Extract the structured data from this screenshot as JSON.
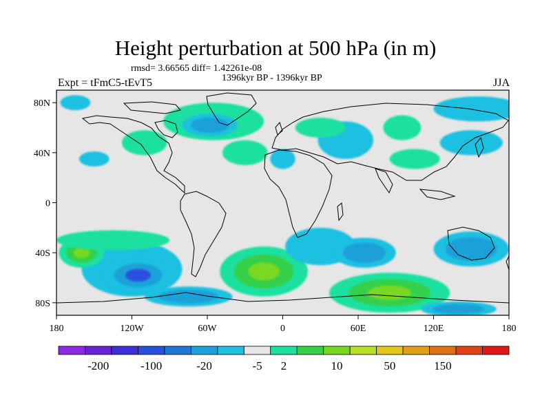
{
  "title": "Height perturbation at 500 hPa (in m)",
  "stats": "rmsd= 3.66565 diff= 1.42261e-08",
  "period": "1396kyr BP - 1396kyr BP",
  "experiment": "Expt = tFmC5-tEvT5",
  "season": "JJA",
  "map": {
    "projection": "cylindrical-equidistant",
    "lon_range": [
      -180,
      180
    ],
    "lat_range": [
      -90,
      90
    ],
    "lon_ticks": [
      {
        "value": -180,
        "label": "180"
      },
      {
        "value": -120,
        "label": "120W"
      },
      {
        "value": -60,
        "label": "60W"
      },
      {
        "value": 0,
        "label": "0"
      },
      {
        "value": 60,
        "label": "60E"
      },
      {
        "value": 120,
        "label": "120E"
      },
      {
        "value": 180,
        "label": "180"
      }
    ],
    "lat_ticks": [
      {
        "value": 80,
        "label": "80N"
      },
      {
        "value": 40,
        "label": "40N"
      },
      {
        "value": 0,
        "label": "0"
      },
      {
        "value": -40,
        "label": "40S"
      },
      {
        "value": -80,
        "label": "80S"
      }
    ],
    "background_color": "#e6e6e6",
    "coastline_color": "#000000"
  },
  "colorbar": {
    "colors": [
      "#8a2be2",
      "#6a1fd8",
      "#3d2fd8",
      "#2a4fe0",
      "#1f78d8",
      "#1fa0d8",
      "#1fc0e0",
      "#e6e6e6",
      "#1ee0a0",
      "#34d04a",
      "#78d820",
      "#b8e020",
      "#e0c81a",
      "#e0a018",
      "#e07018",
      "#e04018",
      "#e01818"
    ],
    "tick_labels": [
      "-200",
      "-100",
      "-20",
      "-5",
      "2",
      "10",
      "50",
      "150"
    ]
  },
  "field_blobs": [
    {
      "lon": -120,
      "lat": -53,
      "rx": 40,
      "ry": 22,
      "level": -3,
      "c": 2
    },
    {
      "lon": -115,
      "lat": -58,
      "rx": 28,
      "ry": 14,
      "level": -20
    },
    {
      "lon": -160,
      "lat": -40,
      "rx": 18,
      "ry": 12,
      "level": 10,
      "c": 2
    },
    {
      "lon": -135,
      "lat": -30,
      "rx": 45,
      "ry": 8,
      "level": 2
    },
    {
      "lon": -75,
      "lat": -75,
      "rx": 35,
      "ry": 8,
      "level": -5
    },
    {
      "lon": -15,
      "lat": -55,
      "rx": 35,
      "ry": 20,
      "level": 10,
      "c": 2
    },
    {
      "lon": 30,
      "lat": -35,
      "rx": 28,
      "ry": 15,
      "level": -3
    },
    {
      "lon": 65,
      "lat": -40,
      "rx": 25,
      "ry": 12,
      "level": -5
    },
    {
      "lon": 85,
      "lat": -72,
      "rx": 48,
      "ry": 16,
      "level": 10,
      "c": 2
    },
    {
      "lon": 150,
      "lat": -37,
      "rx": 30,
      "ry": 14,
      "level": -5,
      "c": 2
    },
    {
      "lon": 140,
      "lat": -85,
      "rx": 30,
      "ry": 6,
      "level": -5
    },
    {
      "lon": -55,
      "lat": 65,
      "rx": 40,
      "ry": 15,
      "level": 2
    },
    {
      "lon": -58,
      "lat": 62,
      "rx": 22,
      "ry": 9,
      "level": -5,
      "c": 2
    },
    {
      "lon": -110,
      "lat": 48,
      "rx": 18,
      "ry": 10,
      "level": 2
    },
    {
      "lon": -30,
      "lat": 40,
      "rx": 18,
      "ry": 10,
      "level": 2
    },
    {
      "lon": -150,
      "lat": 35,
      "rx": 12,
      "ry": 6,
      "level": -3
    },
    {
      "lon": -165,
      "lat": 80,
      "rx": 12,
      "ry": 6,
      "level": -3
    },
    {
      "lon": 0,
      "lat": 35,
      "rx": 10,
      "ry": 8,
      "level": -3
    },
    {
      "lon": 50,
      "lat": 50,
      "rx": 22,
      "ry": 15,
      "level": -3,
      "c": 2
    },
    {
      "lon": 30,
      "lat": 60,
      "rx": 20,
      "ry": 8,
      "level": 2
    },
    {
      "lon": 95,
      "lat": 60,
      "rx": 15,
      "ry": 10,
      "level": 2
    },
    {
      "lon": 105,
      "lat": 35,
      "rx": 20,
      "ry": 8,
      "level": 2
    },
    {
      "lon": 155,
      "lat": 75,
      "rx": 35,
      "ry": 10,
      "level": -3
    },
    {
      "lon": 150,
      "lat": 48,
      "rx": 25,
      "ry": 10,
      "level": -3
    }
  ]
}
